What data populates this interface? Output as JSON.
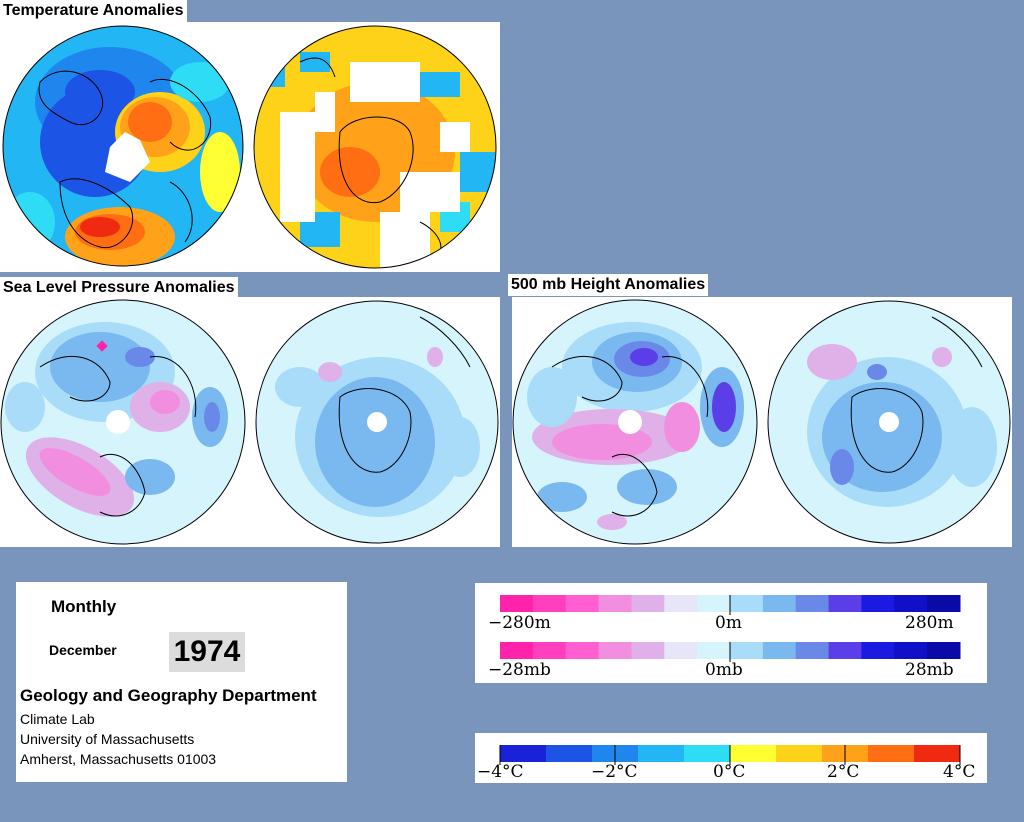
{
  "titles": {
    "temperature": "Temperature Anomalies",
    "slp": "Sea Level Pressure Anomalies",
    "height": "500 mb Height Anomalies"
  },
  "info": {
    "period": "Monthly",
    "month": "December",
    "year": "1974",
    "department": "Geology and Geography Department",
    "lab": "Climate Lab",
    "university": "University of Massachusetts",
    "address": "Amherst, Massachusetts 01003"
  },
  "legends": {
    "height": {
      "min": "−280m",
      "mid": "0m",
      "max": "280m"
    },
    "pressure": {
      "min": "−28mb",
      "mid": "0mb",
      "max": "28mb"
    },
    "temperature": {
      "labels": [
        "−4°C",
        "−2°C",
        "0°C",
        "2°C",
        "4°C"
      ]
    }
  },
  "colors": {
    "background": "#7a95bb",
    "anomaly_scale": [
      "#ff22aa",
      "#ff3fbd",
      "#ff5fd0",
      "#f28ee0",
      "#e0b0e8",
      "#e6e6f8",
      "#d6f4fc",
      "#a8dcf8",
      "#7ab8f0",
      "#6a88e8",
      "#5a3ee8",
      "#1a1ae0",
      "#1010c8",
      "#0a0aa8"
    ],
    "temperature_scale": [
      "#1a22d8",
      "#1c54e6",
      "#1f86ee",
      "#22b6f4",
      "#2edcf6",
      "#ffff33",
      "#ffd21a",
      "#ffa21a",
      "#ff6e12",
      "#f02a10"
    ]
  }
}
